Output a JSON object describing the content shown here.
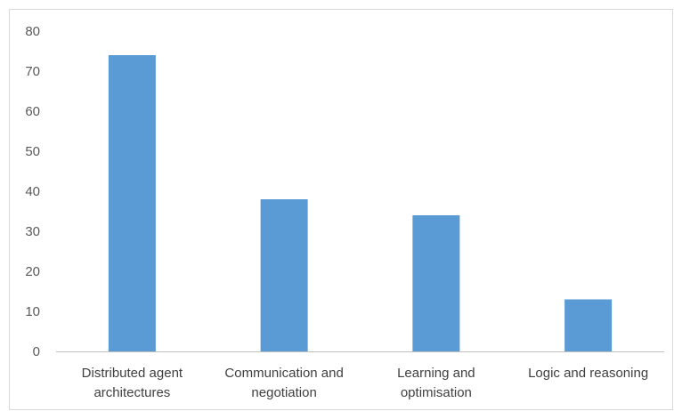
{
  "chart_data": {
    "type": "bar",
    "title": "",
    "xlabel": "",
    "ylabel": "",
    "categories": [
      [
        "Distributed agent",
        "architectures"
      ],
      [
        "Communication and",
        "negotiation"
      ],
      [
        "Learning and",
        "optimisation"
      ],
      [
        "Logic and reasoning"
      ]
    ],
    "values": [
      74,
      38,
      34,
      13
    ],
    "ylim": [
      0,
      80
    ],
    "yticks": [
      0,
      10,
      20,
      30,
      40,
      50,
      60,
      70,
      80
    ],
    "grid": false,
    "legend": "none",
    "bar_color": "#5b9bd5",
    "axis_color": "#bfbfbf"
  }
}
